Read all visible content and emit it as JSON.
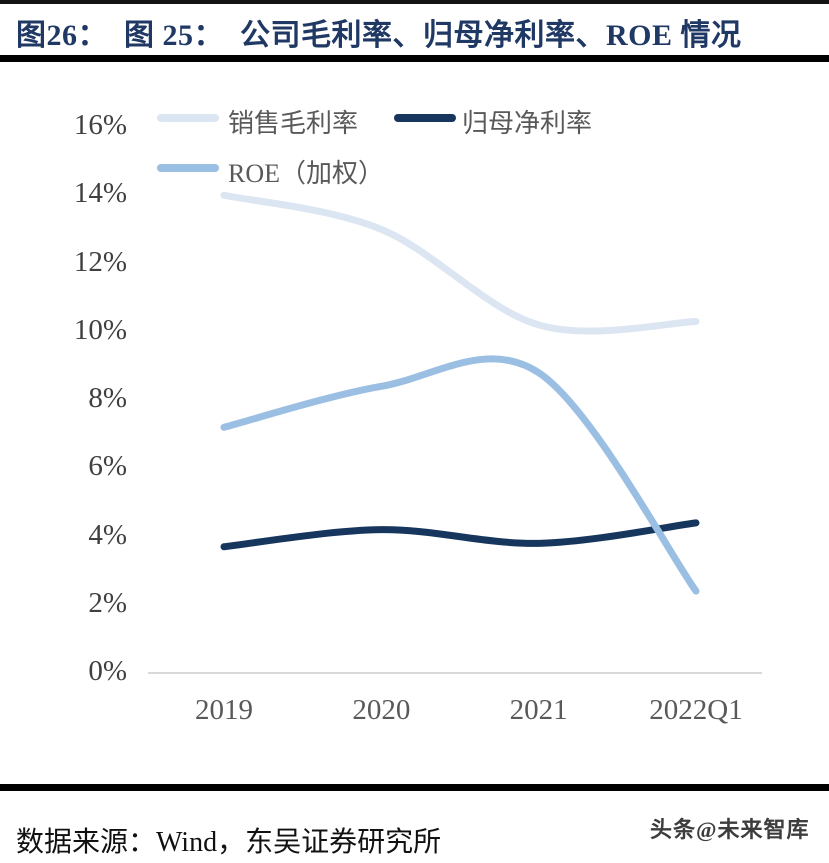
{
  "title": "图26：  图 25：  公司毛利率、归母净利率、ROE 情况",
  "source_line": "数据来源：Wind，东吴证券研究所",
  "watermark": "头条@未来智库",
  "colors": {
    "title": "#1f3864",
    "axis_line": "#d9d9d9",
    "tick_text": "#404040",
    "category_text": "#595959",
    "rule": "#000000"
  },
  "chart_data": {
    "type": "line",
    "smoothed": true,
    "grid": false,
    "legend_position": "top-left",
    "categories": [
      "2019",
      "2020",
      "2021",
      "2022Q1"
    ],
    "series": [
      {
        "name": "销售毛利率",
        "color": "#dce6f2",
        "values": [
          14.0,
          13.0,
          10.2,
          10.3
        ]
      },
      {
        "name": "归母净利率",
        "color": "#17365d",
        "values": [
          3.7,
          4.2,
          3.8,
          4.4
        ]
      },
      {
        "name": "ROE（加权）",
        "color": "#9bbfe3",
        "values": [
          7.2,
          8.4,
          8.8,
          2.4
        ]
      }
    ],
    "ylabel": "",
    "xlabel": "",
    "ylim": [
      0,
      16
    ],
    "ytick_step": 2,
    "ytick_labels": [
      "0%",
      "2%",
      "4%",
      "6%",
      "8%",
      "10%",
      "12%",
      "14%",
      "16%"
    ]
  }
}
